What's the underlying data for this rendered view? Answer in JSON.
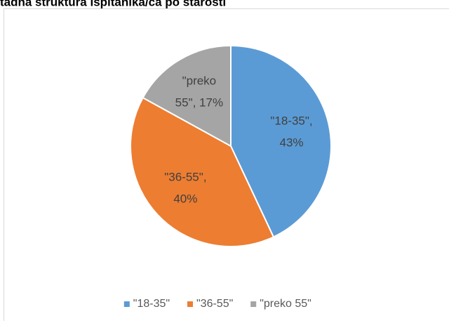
{
  "chart_data": {
    "type": "pie",
    "title": "tadna struktura ispitanika/ca po starosti",
    "categories": [
      "\"18-35\"",
      "\"36-55\"",
      "\"preko 55\""
    ],
    "values": [
      43,
      40,
      17
    ],
    "value_labels": [
      [
        "\"18-35\",",
        "43%"
      ],
      [
        "\"36-55\",",
        "40%"
      ],
      [
        "\"preko",
        "55\", 17%"
      ]
    ],
    "colors": [
      "#5b9bd5",
      "#ed7d31",
      "#a5a5a5"
    ],
    "legend": "bottom"
  }
}
